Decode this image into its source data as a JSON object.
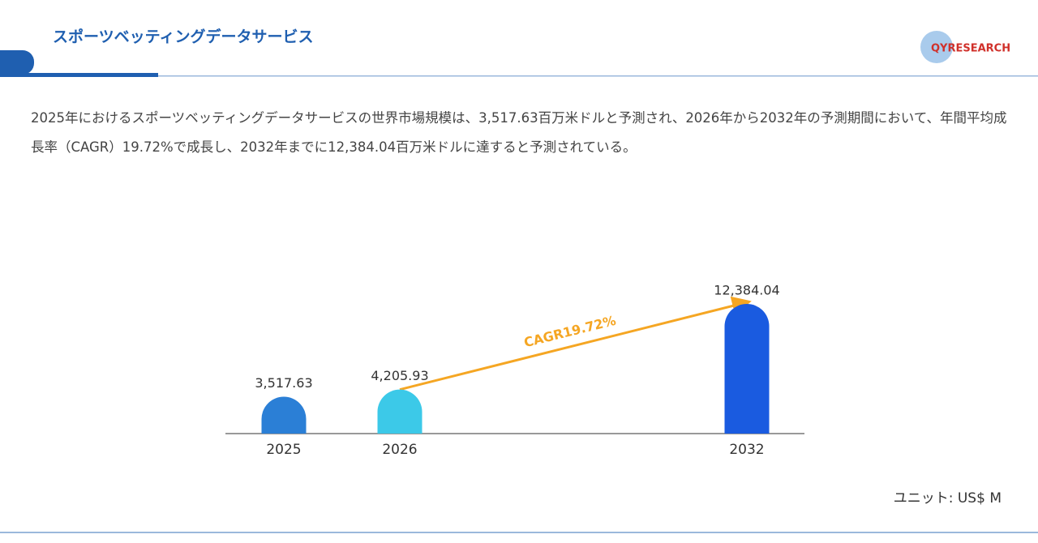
{
  "header": {
    "title": "スポーツベッティングデータサービス",
    "logo": "QYRESEARCH"
  },
  "description": "2025年におけるスポーツベッティングデータサービスの世界市場規模は、3,517.63百万米ドルと予測され、2026年から2032年の予測期間において、年間平均成長率（CAGR）19.72%で成長し、2032年までに12,384.04百万米ドルに達すると予測されている。",
  "chart_data": {
    "type": "bar",
    "categories": [
      "2025",
      "2026",
      "2032"
    ],
    "values": [
      3517.63,
      4205.93,
      12384.04
    ],
    "value_labels": [
      "3,517.63",
      "4,205.93",
      "12,384.04"
    ],
    "colors": [
      "#2b7fd6",
      "#3cc9e8",
      "#1a5be0"
    ],
    "annotation": "CAGR19.72%",
    "unit": "ユニット: US$ M"
  }
}
